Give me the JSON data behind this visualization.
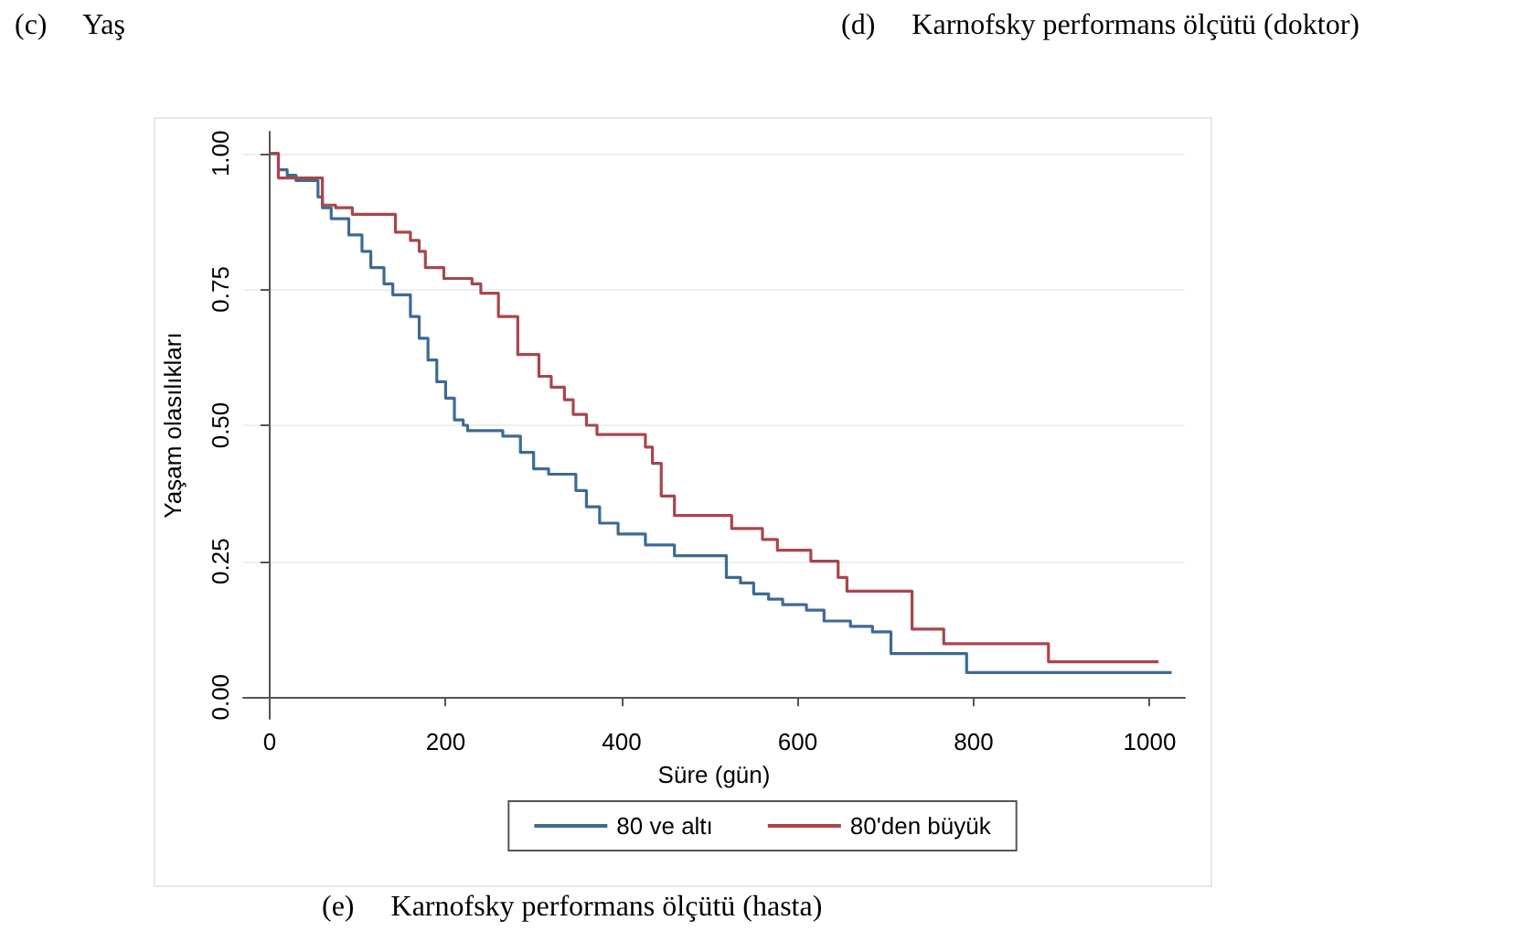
{
  "chart_data": {
    "type": "step",
    "xlabel": "Süre (gün)",
    "ylabel": "Yaşam olasılıkları",
    "annotations": [
      "(c)     Yaş",
      "(d)     Karnofsky performans ölçütü (doktor)",
      "(e)     Karnofsky performans ölçütü (hasta)"
    ],
    "xlim": [
      -30,
      1040
    ],
    "xticks": [
      0,
      200,
      400,
      600,
      800,
      1000
    ],
    "ylim": [
      -0.04,
      1.04
    ],
    "yticks": [
      {
        "value": 0,
        "label": "0.00"
      },
      {
        "value": 0.25,
        "label": "0.25"
      },
      {
        "value": 0.5,
        "label": "0.50"
      },
      {
        "value": 0.75,
        "label": "0.75"
      },
      {
        "value": 1,
        "label": "1.00"
      }
    ],
    "grid": "y",
    "legend": "bottom",
    "marker": "none",
    "line_style": "solid",
    "series": [
      {
        "name": "80 ve altı",
        "color": "#3e6a93",
        "x": [
          0,
          10,
          20,
          30,
          55,
          60,
          70,
          90,
          105,
          115,
          130,
          140,
          160,
          170,
          180,
          190,
          200,
          210,
          220,
          225,
          265,
          285,
          300,
          317,
          348,
          360,
          375,
          396,
          427,
          460,
          519,
          535,
          550,
          567,
          583,
          610,
          630,
          660,
          685,
          706,
          792,
          1025
        ],
        "values": [
          1,
          0.97,
          0.96,
          0.95,
          0.92,
          0.9,
          0.88,
          0.85,
          0.82,
          0.79,
          0.76,
          0.74,
          0.7,
          0.66,
          0.62,
          0.58,
          0.55,
          0.51,
          0.5,
          0.49,
          0.48,
          0.45,
          0.42,
          0.41,
          0.38,
          0.35,
          0.32,
          0.3,
          0.28,
          0.26,
          0.22,
          0.21,
          0.19,
          0.18,
          0.17,
          0.16,
          0.14,
          0.13,
          0.12,
          0.08,
          0.045,
          0.045
        ]
      },
      {
        "name": "80'den büyük",
        "color": "#a8464c",
        "x": [
          0,
          10,
          60,
          75,
          94,
          143,
          160,
          170,
          177,
          198,
          230,
          240,
          260,
          282,
          306,
          320,
          335,
          345,
          360,
          372,
          427,
          435,
          445,
          460,
          477,
          525,
          560,
          577,
          615,
          646,
          656,
          730,
          766,
          885,
          1010
        ],
        "values": [
          1,
          0.955,
          0.905,
          0.9,
          0.888,
          0.855,
          0.84,
          0.82,
          0.79,
          0.77,
          0.76,
          0.743,
          0.7,
          0.63,
          0.59,
          0.57,
          0.547,
          0.52,
          0.5,
          0.483,
          0.46,
          0.43,
          0.37,
          0.334,
          0.334,
          0.31,
          0.29,
          0.27,
          0.25,
          0.22,
          0.195,
          0.125,
          0.098,
          0.065,
          0.065
        ]
      }
    ]
  }
}
